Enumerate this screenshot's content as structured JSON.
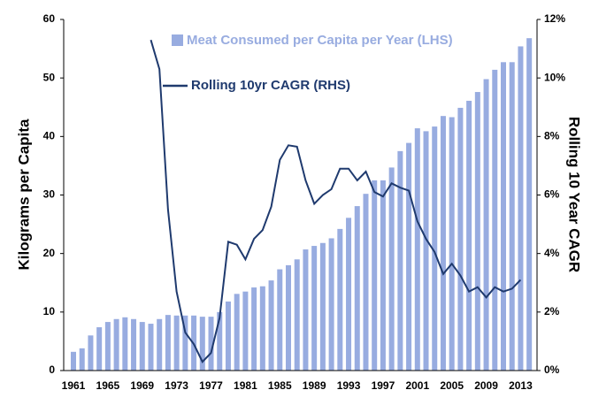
{
  "chart_data": {
    "type": "bar-line",
    "y_label": "Kilograms  per Capita",
    "y2_label": "Rolling 10 Year CAGR",
    "categories": [
      "1961",
      null,
      null,
      null,
      "1965",
      null,
      null,
      null,
      "1969",
      null,
      null,
      null,
      "1973",
      null,
      null,
      null,
      "1977",
      null,
      null,
      null,
      "1981",
      null,
      null,
      null,
      "1985",
      null,
      null,
      null,
      "1989",
      null,
      null,
      null,
      "1993",
      null,
      null,
      null,
      "1997",
      null,
      null,
      null,
      "2001",
      null,
      null,
      null,
      "2005",
      null,
      null,
      null,
      "2009",
      null,
      null,
      null,
      "2013",
      null
    ],
    "series": [
      {
        "name": "Meat Consumed per Capita per Year (LHS)",
        "color": "#98ace0",
        "axis": "y",
        "values": [
          3.2,
          3.8,
          6.0,
          7.4,
          8.3,
          8.8,
          9.1,
          8.8,
          8.3,
          8.0,
          8.8,
          9.5,
          9.4,
          9.4,
          9.4,
          9.2,
          9.2,
          10.0,
          11.8,
          13.1,
          13.5,
          14.2,
          14.4,
          15.4,
          17.3,
          18.0,
          19.0,
          20.7,
          21.3,
          21.8,
          22.6,
          24.2,
          26.1,
          28.1,
          30.2,
          32.5,
          32.5,
          34.7,
          37.5,
          38.9,
          41.4,
          40.9,
          41.7,
          43.5,
          43.3,
          44.9,
          46.1,
          47.6,
          49.8,
          51.4,
          52.7,
          52.7,
          55.4,
          56.8
        ]
      },
      {
        "name": "Rolling 10yr CAGR (RHS)",
        "color": "#1f3a6e",
        "axis": "y2",
        "values": [
          null,
          null,
          null,
          null,
          null,
          null,
          null,
          null,
          null,
          11.3,
          10.3,
          5.5,
          2.7,
          1.3,
          0.9,
          0.3,
          0.6,
          1.8,
          4.4,
          4.3,
          3.8,
          4.5,
          4.8,
          5.6,
          7.2,
          7.7,
          7.65,
          6.5,
          5.7,
          6.0,
          6.2,
          6.9,
          6.9,
          6.5,
          6.8,
          6.1,
          5.95,
          6.4,
          6.25,
          6.15,
          5.1,
          4.5,
          4.05,
          3.3,
          3.65,
          3.25,
          2.7,
          2.85,
          2.5,
          2.85,
          2.7,
          2.8,
          3.1,
          null
        ]
      }
    ],
    "ylim": [
      0,
      60
    ],
    "yticks": [
      0,
      10,
      20,
      30,
      40,
      50,
      60
    ],
    "y2lim": [
      0,
      12
    ],
    "y2ticks": [
      {
        "value": 0,
        "label": "0%"
      },
      {
        "value": 2,
        "label": "2%"
      },
      {
        "value": 4,
        "label": "4%"
      },
      {
        "value": 6,
        "label": "6%"
      },
      {
        "value": 8,
        "label": "8%"
      },
      {
        "value": 10,
        "label": "10%"
      },
      {
        "value": 12,
        "label": "12%"
      }
    ]
  }
}
